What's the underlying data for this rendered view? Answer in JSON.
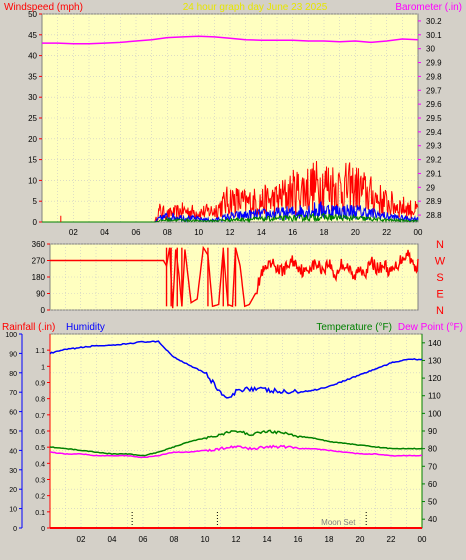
{
  "chart_data": [
    {
      "type": "line",
      "title": "24 hour graph day   June 23 2025",
      "left_label": "Windspeed (mph)",
      "right_label": "Barometer (.in)",
      "x_ticks": [
        "02",
        "04",
        "06",
        "08",
        "10",
        "12",
        "14",
        "16",
        "18",
        "20",
        "22",
        "00"
      ],
      "y_left_ticks": [
        "0",
        "5",
        "10",
        "15",
        "20",
        "25",
        "30",
        "35",
        "40",
        "45",
        "50"
      ],
      "y_left_range": [
        0,
        50
      ],
      "y_right_ticks": [
        "28.8",
        "28.9",
        "29",
        "29.1",
        "29.2",
        "29.3",
        "29.4",
        "29.5",
        "29.6",
        "29.7",
        "29.8",
        "29.9",
        "30",
        "30.1",
        "30.2"
      ],
      "y_right_range": [
        28.75,
        30.25
      ],
      "x_range": [
        0,
        24
      ],
      "grid": true,
      "series": [
        {
          "key": "barometer",
          "color": "#ff00ff",
          "axis": "right",
          "x": [
            0,
            1,
            2,
            3,
            4,
            5,
            6,
            7,
            8,
            9,
            10,
            11,
            12,
            13,
            14,
            15,
            16,
            17,
            18,
            19,
            20,
            21,
            22,
            23,
            24
          ],
          "values": [
            30.04,
            30.04,
            30.035,
            30.035,
            30.04,
            30.045,
            30.055,
            30.065,
            30.08,
            30.085,
            30.09,
            30.085,
            30.075,
            30.065,
            30.06,
            30.06,
            30.06,
            30.055,
            30.055,
            30.05,
            30.055,
            30.045,
            30.055,
            30.07,
            30.065
          ]
        },
        {
          "key": "wind_gust",
          "color": "#ff0000",
          "axis": "left",
          "x": [
            0,
            7.2,
            7.5,
            8,
            9,
            10,
            11,
            12,
            13,
            14,
            15,
            16,
            17,
            18,
            19,
            20,
            21,
            22,
            23,
            24
          ],
          "values": [
            0,
            0,
            3,
            2,
            3,
            2.5,
            3,
            6,
            5,
            5.5,
            6,
            8,
            9,
            10,
            9,
            9,
            7,
            5,
            4,
            3
          ]
        },
        {
          "key": "wind_avg",
          "color": "#0000ff",
          "axis": "left",
          "x": [
            0,
            7.2,
            7.5,
            8,
            9,
            10,
            11,
            12,
            13,
            14,
            15,
            16,
            17,
            18,
            19,
            20,
            21,
            22,
            23,
            24
          ],
          "values": [
            0,
            0,
            1,
            1.5,
            1.2,
            0.8,
            0.5,
            1.5,
            1.8,
            2,
            2.2,
            2.5,
            3,
            3.2,
            2.8,
            2.8,
            2.2,
            1.5,
            1,
            0.8
          ]
        },
        {
          "key": "wind_low",
          "color": "#008000",
          "axis": "left",
          "x": [
            0,
            7.2,
            7.5,
            8,
            9,
            10,
            11,
            12,
            13,
            14,
            15,
            16,
            17,
            18,
            19,
            20,
            21,
            22,
            23,
            24
          ],
          "values": [
            0,
            0,
            0.3,
            0.6,
            0.5,
            0.3,
            0.3,
            0.6,
            0.7,
            0.8,
            0.9,
            1,
            1.2,
            1.3,
            1.1,
            1,
            0.8,
            0.5,
            0.4,
            0.3
          ]
        }
      ]
    },
    {
      "type": "line",
      "right_letters": [
        "N",
        "W",
        "S",
        "E",
        "N"
      ],
      "y_ticks": [
        "0",
        "90",
        "180",
        "270",
        "360"
      ],
      "y_range": [
        0,
        360
      ],
      "x_range": [
        0,
        24
      ],
      "series": [
        {
          "key": "wind_direction",
          "color": "#ff0000",
          "x": [
            0,
            7.4,
            7.6,
            7.8,
            8.0,
            8.2,
            8.4,
            8.6,
            8.8,
            9.2,
            9.6,
            10.0,
            10.3,
            10.6,
            11.0,
            11.3,
            11.6,
            11.9,
            12.1,
            12.4,
            12.7,
            13.0,
            13.4,
            13.8,
            14.2,
            14.6,
            15.0,
            15.4,
            15.8,
            16.2,
            16.6,
            17.0,
            17.4,
            17.8,
            18.2,
            18.6,
            19.0,
            19.4,
            19.8,
            20.2,
            20.6,
            21.0,
            21.4,
            21.8,
            22.2,
            22.6,
            23.0,
            23.4,
            23.8,
            24
          ],
          "values": [
            270,
            270,
            240,
            340,
            10,
            330,
            200,
            20,
            330,
            40,
            60,
            340,
            300,
            20,
            30,
            330,
            30,
            20,
            340,
            240,
            20,
            30,
            90,
            200,
            230,
            250,
            210,
            230,
            270,
            240,
            200,
            240,
            250,
            220,
            260,
            180,
            250,
            240,
            170,
            230,
            210,
            260,
            220,
            250,
            200,
            240,
            290,
            310,
            220,
            250
          ]
        }
      ]
    },
    {
      "type": "line",
      "left_label_rain": "Rainfall (.in)",
      "left_label_humidity": "Humidity",
      "right_label_temp": "Temperature (°F)",
      "right_label_dew": "Dew Point (°F)",
      "rain_ticks": [
        "0",
        "0.1",
        "0.2",
        "0.3",
        "0.4",
        "0.5",
        "0.6",
        "0.7",
        "0.8",
        "0.9",
        "1",
        "1.1"
      ],
      "rain_range": [
        0,
        1.2
      ],
      "humidity_ticks": [
        "0",
        "10",
        "20",
        "30",
        "40",
        "50",
        "60",
        "70",
        "80",
        "90",
        "100"
      ],
      "humidity_range": [
        0,
        100
      ],
      "temp_ticks": [
        "40",
        "50",
        "60",
        "70",
        "80",
        "90",
        "100",
        "110",
        "120",
        "130",
        "140"
      ],
      "temp_range": [
        35,
        145
      ],
      "x_range": [
        0,
        24
      ],
      "annotation": "Moon Set",
      "series": [
        {
          "key": "humidity",
          "color": "#0000ff",
          "axis": "humidity",
          "x": [
            0,
            1,
            2,
            3,
            4,
            5,
            6,
            7,
            7.5,
            8,
            9,
            10,
            10.5,
            11,
            11.5,
            12,
            12.5,
            13,
            14,
            15,
            16,
            17,
            18,
            19,
            20,
            21,
            22,
            23,
            24
          ],
          "values": [
            90,
            92,
            93,
            94,
            94,
            95,
            96,
            96,
            92,
            88,
            84,
            80,
            75,
            70,
            66,
            70,
            72,
            72,
            71,
            70,
            70,
            71,
            73,
            76,
            79,
            82,
            85,
            87,
            87
          ]
        },
        {
          "key": "temperature",
          "color": "#008000",
          "axis": "temp",
          "x": [
            0,
            1,
            2,
            3,
            4,
            5,
            6,
            7,
            8,
            9,
            10,
            11,
            12,
            13,
            14,
            15,
            16,
            17,
            18,
            19,
            20,
            21,
            22,
            23,
            24
          ],
          "values": [
            81,
            80,
            79,
            78,
            77,
            77,
            76,
            78,
            81,
            84,
            86,
            88,
            90,
            88,
            90,
            89,
            87,
            86,
            84,
            83,
            82,
            81,
            80,
            80,
            80
          ]
        },
        {
          "key": "dew_point",
          "color": "#ff00ff",
          "axis": "temp",
          "x": [
            0,
            1,
            2,
            3,
            4,
            5,
            6,
            7,
            8,
            9,
            10,
            11,
            12,
            13,
            14,
            15,
            16,
            17,
            18,
            19,
            20,
            21,
            22,
            23,
            24
          ],
          "values": [
            78,
            77,
            77,
            76,
            76,
            76,
            75,
            76,
            78,
            78,
            79,
            80,
            81,
            80,
            81,
            81,
            80,
            80,
            79,
            78,
            77,
            77,
            76,
            76,
            76
          ]
        },
        {
          "key": "rainfall",
          "color": "#ff0000",
          "axis": "rain",
          "x": [
            0,
            24
          ],
          "values": [
            0,
            0
          ]
        }
      ],
      "markers_x": [
        5.3,
        10.8,
        20.4
      ]
    }
  ],
  "colors": {
    "panel_bg": "#ffffc0",
    "grid": "#c8c8c8",
    "frame_bg": "#d4d0c8",
    "title_color": "#e6e600",
    "red": "#ff0000",
    "blue": "#0000ff",
    "green": "#008000",
    "magenta": "#ff00ff"
  }
}
